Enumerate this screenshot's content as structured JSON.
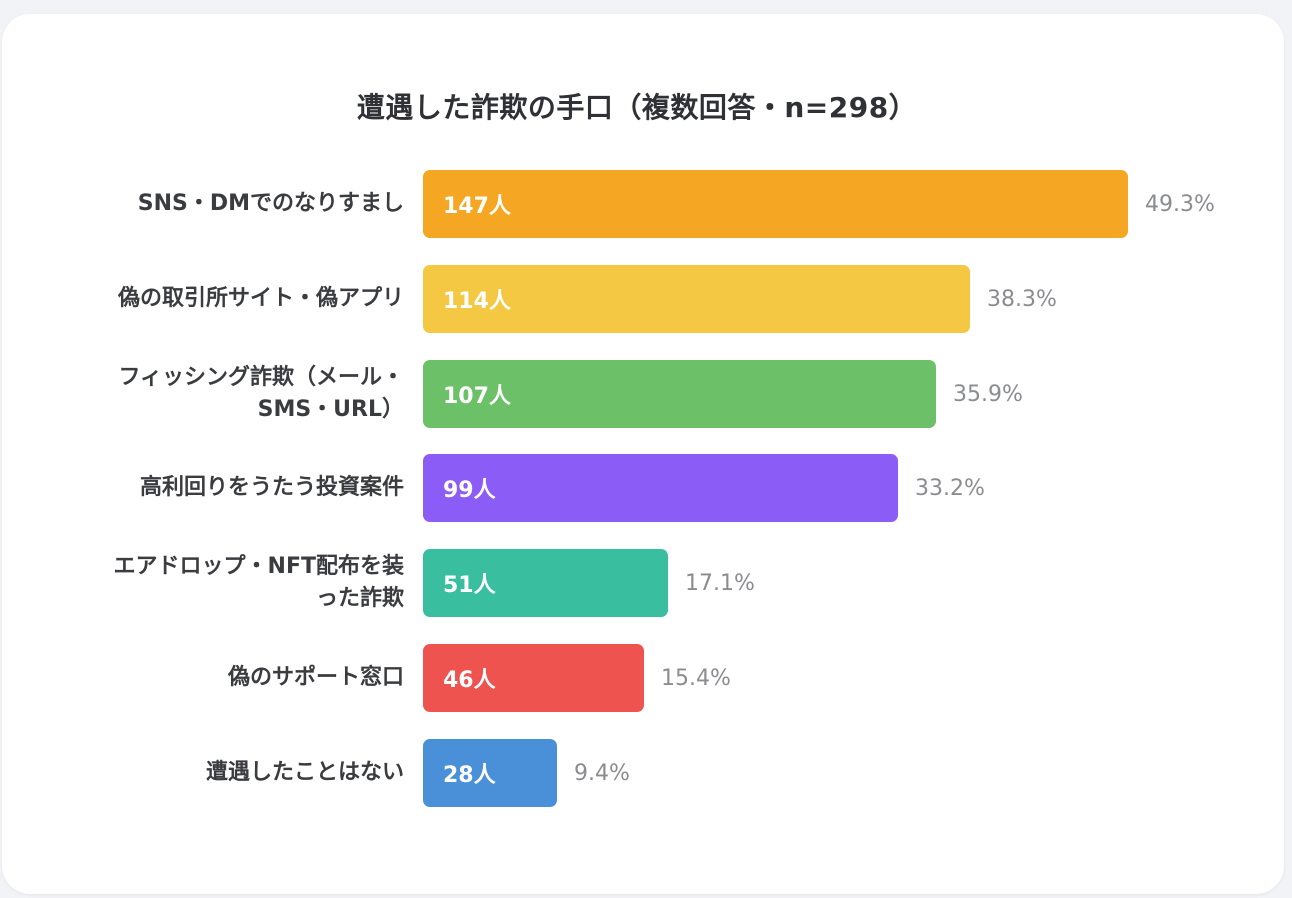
{
  "chart_data": {
    "type": "bar",
    "orientation": "horizontal",
    "title": "遭遇した詐欺の手口（複数回答・n=298）",
    "categories": [
      "SNS・DMでのなりすまし",
      "偽の取引所サイト・偽アプリ",
      "フィッシング詐欺（メール・SMS・URL）",
      "高利回りをうたう投資案件",
      "エアドロップ・NFT配布を装った詐欺",
      "偽のサポート窓口",
      "遭遇したことはない"
    ],
    "category_lines": [
      [
        "SNS・DMでのなりすまし"
      ],
      [
        "偽の取引所サイト・偽アプリ"
      ],
      [
        "フィッシング詐欺（メール・",
        "SMS・URL）"
      ],
      [
        "高利回りをうたう投資案件"
      ],
      [
        "エアドロップ・NFT配布を装",
        "った詐欺"
      ],
      [
        "偽のサポート窓口"
      ],
      [
        "遭遇したことはない"
      ]
    ],
    "values": [
      147,
      114,
      107,
      99,
      51,
      46,
      28
    ],
    "value_labels": [
      "147人",
      "114人",
      "107人",
      "99人",
      "51人",
      "46人",
      "28人"
    ],
    "percent_labels": [
      "49.3%",
      "38.3%",
      "35.9%",
      "33.2%",
      "17.1%",
      "15.4%",
      "9.4%"
    ],
    "colors": [
      "#f5a623",
      "#f4c842",
      "#6cc067",
      "#8b5cf6",
      "#39bfa0",
      "#ef5350",
      "#4a90d9"
    ],
    "xlim": [
      0,
      147
    ],
    "grid": false,
    "legend": "none"
  }
}
